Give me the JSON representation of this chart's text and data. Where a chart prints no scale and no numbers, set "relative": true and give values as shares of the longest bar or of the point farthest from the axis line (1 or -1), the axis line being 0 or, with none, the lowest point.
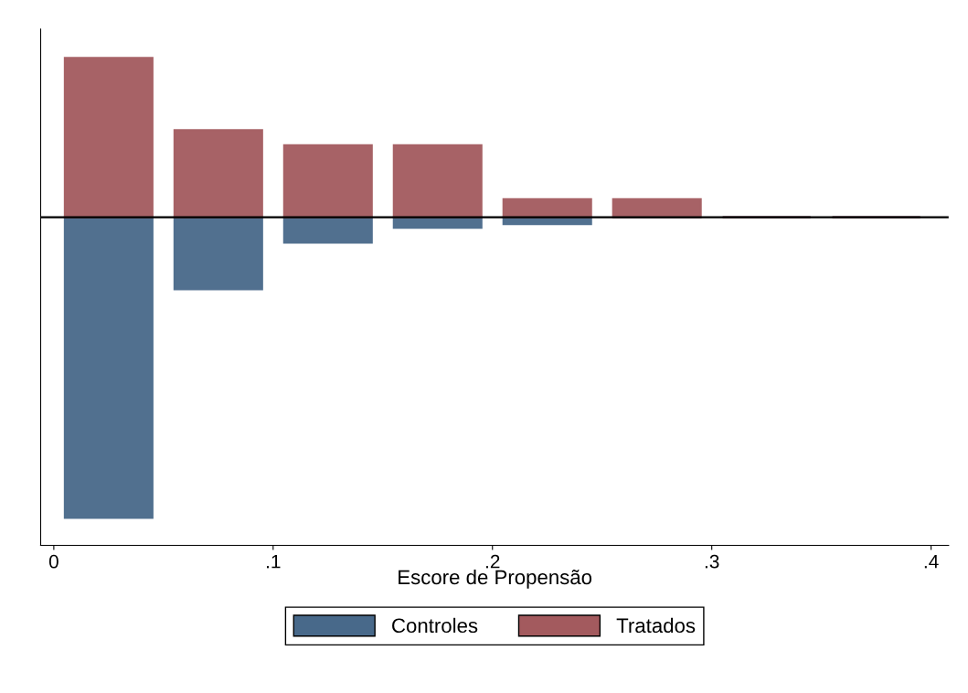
{
  "chart_data": {
    "type": "bar",
    "xlabel": "Escore de Propensão",
    "relative": true,
    "x": [
      0.025,
      0.075,
      0.125,
      0.175,
      0.225,
      0.275,
      0.325,
      0.375
    ],
    "xlim": [
      -0.006,
      0.408
    ],
    "xticks": [
      {
        "value": 0,
        "label": "0"
      },
      {
        "value": 0.1,
        "label": ".1"
      },
      {
        "value": 0.2,
        "label": ".2"
      },
      {
        "value": 0.3,
        "label": ".3"
      },
      {
        "value": 0.4,
        "label": ".4"
      }
    ],
    "series": [
      {
        "name": "Controles",
        "color": "#48698a",
        "values": [
          -1,
          -0.24,
          -0.085,
          -0.035,
          -0.023,
          0,
          0,
          0
        ]
      },
      {
        "name": "Tratados",
        "color": "#a35a5e",
        "values": [
          0.53,
          0.29,
          0.24,
          0.24,
          0.06,
          0.06,
          0,
          0
        ]
      }
    ],
    "ref_lines": [
      {
        "axis": "y",
        "value": 0,
        "color": "#000000"
      }
    ],
    "legend": "bottom",
    "grid": false
  }
}
